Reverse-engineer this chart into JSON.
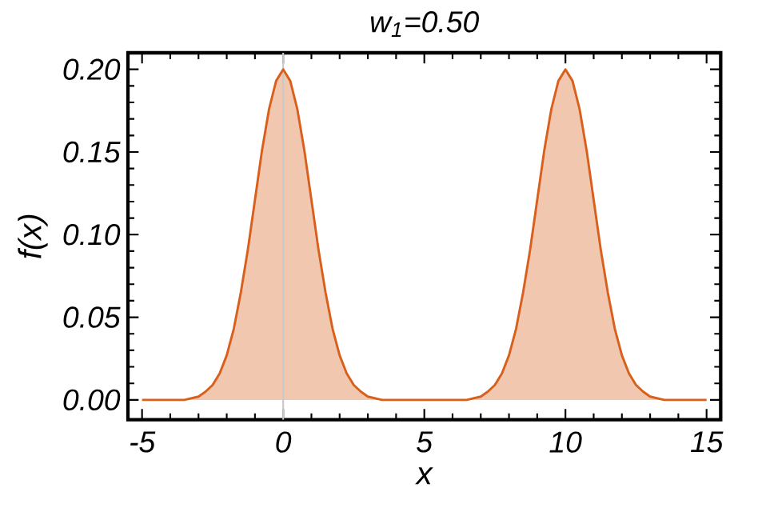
{
  "chart_data": {
    "type": "area",
    "title": "w$_{1}$=0.50",
    "xlabel": "x",
    "ylabel": "f(x)",
    "x": [
      -5,
      -4.5,
      -4,
      -3.5,
      -3,
      -2.75,
      -2.5,
      -2.25,
      -2,
      -1.75,
      -1.5,
      -1.25,
      -1,
      -0.75,
      -0.5,
      -0.25,
      0,
      0.25,
      0.5,
      0.75,
      1,
      1.25,
      1.5,
      1.75,
      2,
      2.25,
      2.5,
      2.75,
      3,
      3.5,
      4,
      4.5,
      5,
      5.5,
      6,
      6.5,
      7,
      7.25,
      7.5,
      7.75,
      8,
      8.25,
      8.5,
      8.75,
      9,
      9.25,
      9.5,
      9.75,
      10,
      10.25,
      10.5,
      10.75,
      11,
      11.25,
      11.5,
      11.75,
      12,
      12.25,
      12.5,
      12.75,
      13,
      13.5,
      14,
      14.5,
      15
    ],
    "series": [
      {
        "color": "#d9601c",
        "values": [
          0,
          0,
          0,
          0,
          0.002,
          0.005,
          0.009,
          0.016,
          0.027,
          0.043,
          0.065,
          0.091,
          0.121,
          0.151,
          0.176,
          0.193,
          0.2,
          0.193,
          0.176,
          0.151,
          0.121,
          0.091,
          0.065,
          0.043,
          0.027,
          0.016,
          0.009,
          0.005,
          0.002,
          0,
          0,
          0,
          0,
          0,
          0,
          0,
          0.002,
          0.005,
          0.009,
          0.016,
          0.027,
          0.043,
          0.065,
          0.091,
          0.121,
          0.151,
          0.176,
          0.193,
          0.2,
          0.193,
          0.176,
          0.151,
          0.121,
          0.091,
          0.065,
          0.043,
          0.027,
          0.016,
          0.009,
          0.005,
          0.002,
          0,
          0,
          0,
          0
        ]
      }
    ],
    "xlim": [
      -5.5,
      15.5
    ],
    "ylim": [
      -0.012,
      0.21
    ],
    "xticks": [
      -5,
      0,
      5,
      10,
      15
    ],
    "yticks": [
      {
        "value": 0,
        "label": "0.00"
      },
      {
        "value": 0.05,
        "label": "0.05"
      },
      {
        "value": 0.1,
        "label": "0.10"
      },
      {
        "value": 0.15,
        "label": "0.15"
      },
      {
        "value": 0.2,
        "label": "0.20"
      }
    ],
    "ref_lines": [
      {
        "axis": "x",
        "value": 0,
        "color": "#c8c8c8"
      }
    ],
    "line_style": "solid"
  }
}
